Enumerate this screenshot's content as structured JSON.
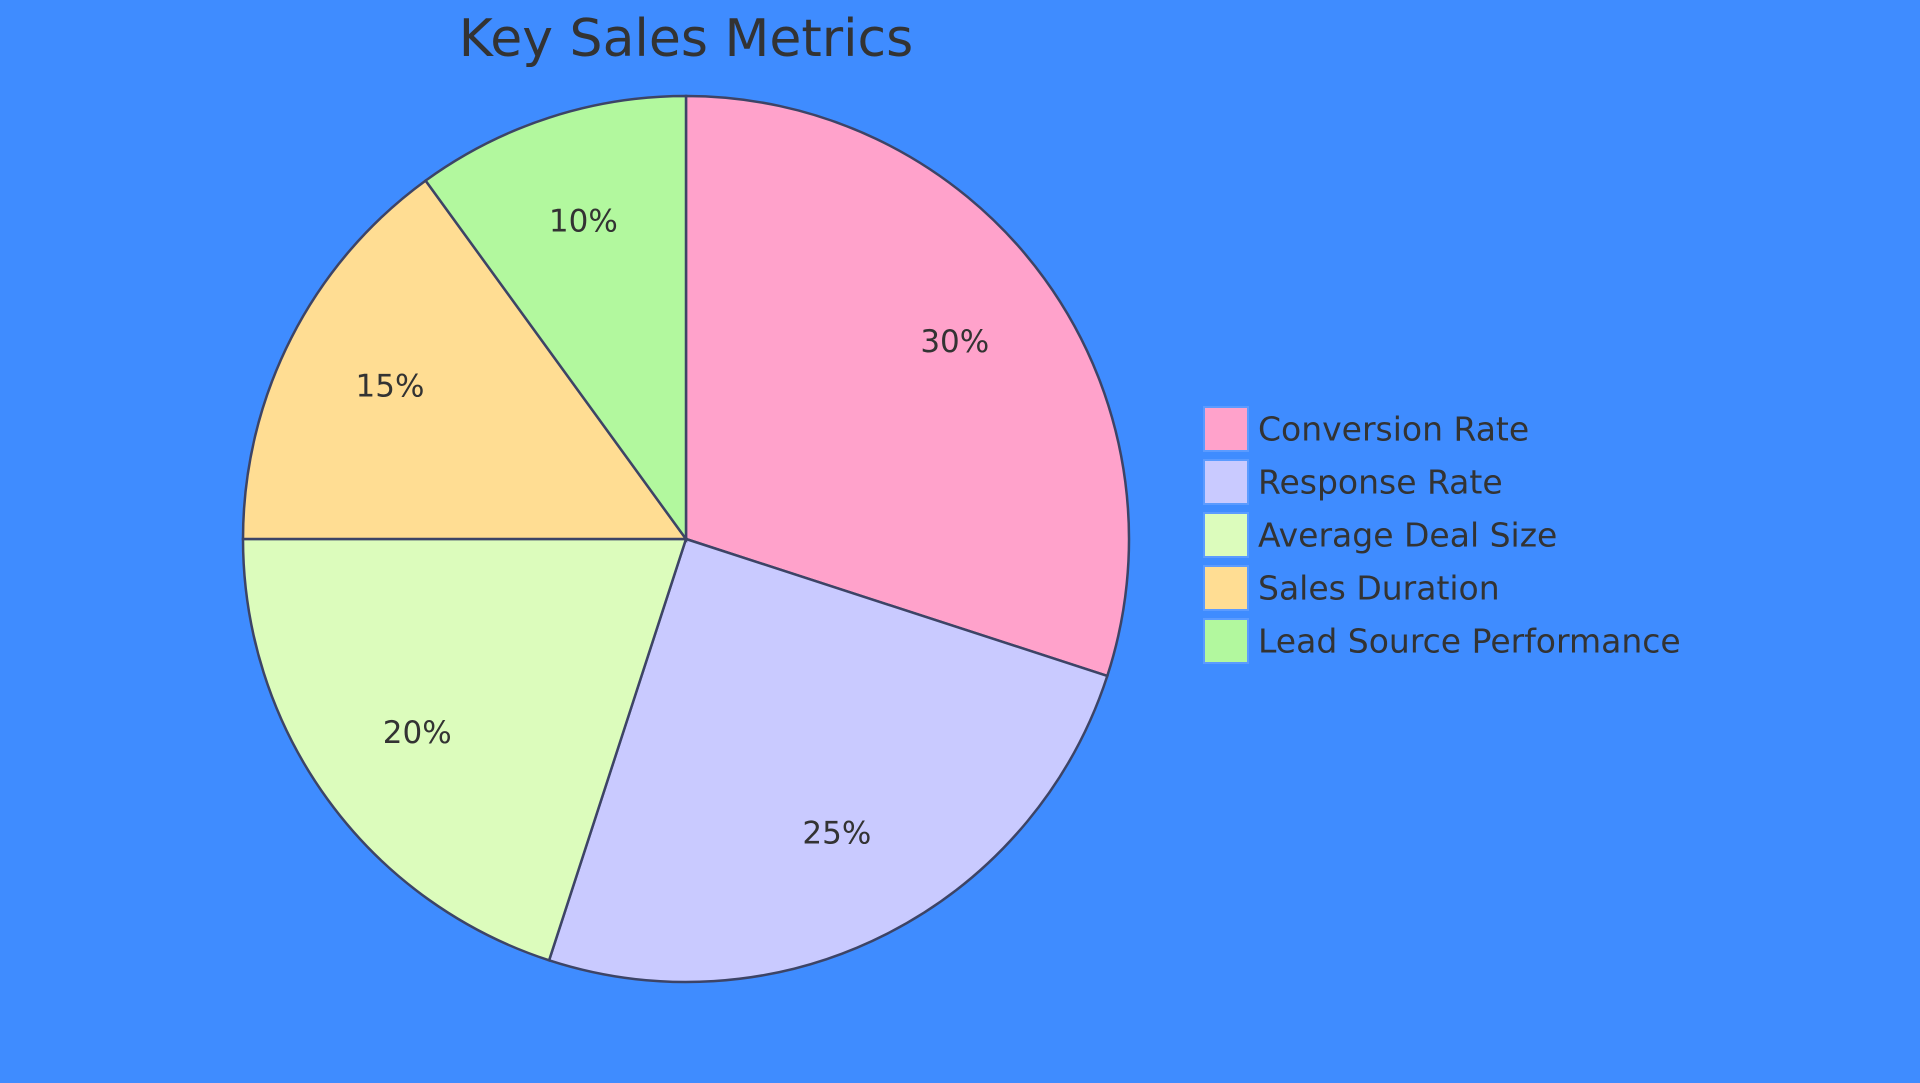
{
  "chart_data": {
    "type": "pie",
    "title": "Key Sales Metrics",
    "categories": [
      "Conversion Rate",
      "Response Rate",
      "Average Deal Size",
      "Sales Duration",
      "Lead Source Performance"
    ],
    "values": [
      30,
      25,
      20,
      15,
      10
    ],
    "value_labels": [
      "30%",
      "25%",
      "20%",
      "15%",
      "10%"
    ],
    "colors": [
      "#ffa2cb",
      "#c9caff",
      "#dcfcbc",
      "#ffdd93",
      "#b2f89e"
    ],
    "legend": "right"
  }
}
